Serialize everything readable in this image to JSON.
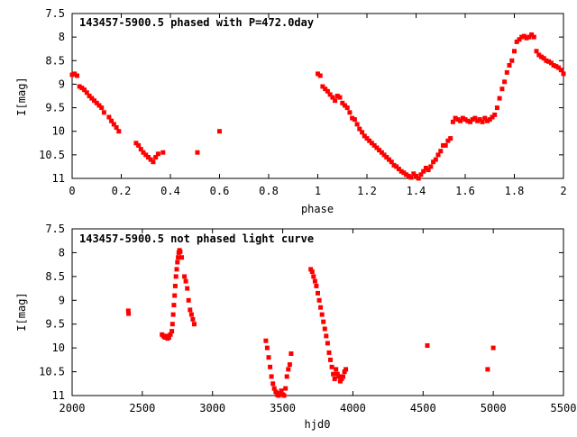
{
  "chart_data": [
    {
      "type": "scatter",
      "title": "143457-5900.5 phased with P=472.0day",
      "xlabel": "phase",
      "ylabel": "I[mag]",
      "xlim": [
        0,
        2
      ],
      "ylim": [
        7.5,
        11
      ],
      "y_inverted": true,
      "x_ticks": [
        "0",
        "0.2",
        "0.4",
        "0.6",
        "0.8",
        "1",
        "1.2",
        "1.4",
        "1.6",
        "1.8",
        "2"
      ],
      "y_ticks": [
        "7.5",
        "8",
        "8.5",
        "9",
        "9.5",
        "10",
        "10.5",
        "11"
      ],
      "grid": false,
      "marker_color": "#ff0000",
      "series": [
        {
          "x": [
            0.0,
            0.01,
            0.02,
            0.03,
            0.04,
            0.05,
            0.06,
            0.07,
            0.08,
            0.09,
            0.1,
            0.11,
            0.12,
            0.13,
            0.15,
            0.16,
            0.17,
            0.18,
            0.19,
            0.26,
            0.27,
            0.28,
            0.29,
            0.3,
            0.31,
            0.32,
            0.33,
            0.34,
            0.35,
            0.37,
            0.51,
            0.6,
            1.0,
            1.01,
            1.02,
            1.03,
            1.04,
            1.05,
            1.06,
            1.07,
            1.08,
            1.09,
            1.1,
            1.11,
            1.12,
            1.13,
            1.14,
            1.15,
            1.16,
            1.17,
            1.18,
            1.19,
            1.2,
            1.21,
            1.22,
            1.23,
            1.24,
            1.25,
            1.26,
            1.27,
            1.28,
            1.29,
            1.3,
            1.31,
            1.32,
            1.33,
            1.34,
            1.35,
            1.36,
            1.37,
            1.38,
            1.39,
            1.4,
            1.41,
            1.42,
            1.43,
            1.44,
            1.45,
            1.46,
            1.47,
            1.48,
            1.49,
            1.5,
            1.51,
            1.52,
            1.53,
            1.54,
            1.55,
            1.56,
            1.57,
            1.58,
            1.59,
            1.6,
            1.61,
            1.62,
            1.63,
            1.64,
            1.65,
            1.66,
            1.67,
            1.68,
            1.69,
            1.7,
            1.71,
            1.72,
            1.73,
            1.74,
            1.75,
            1.76,
            1.77,
            1.78,
            1.79,
            1.8,
            1.81,
            1.82,
            1.83,
            1.84,
            1.85,
            1.86,
            1.87,
            1.88,
            1.89,
            1.9,
            1.91,
            1.92,
            1.93,
            1.94,
            1.95,
            1.96,
            1.97,
            1.98,
            1.99,
            2.0
          ],
          "y": [
            8.8,
            8.78,
            8.82,
            9.05,
            9.08,
            9.12,
            9.18,
            9.25,
            9.3,
            9.35,
            9.4,
            9.45,
            9.5,
            9.6,
            9.7,
            9.78,
            9.85,
            9.92,
            10.0,
            10.25,
            10.3,
            10.38,
            10.45,
            10.5,
            10.55,
            10.6,
            10.65,
            10.55,
            10.48,
            10.45,
            10.45,
            10.0,
            8.78,
            8.82,
            9.05,
            9.1,
            9.15,
            9.22,
            9.28,
            9.35,
            9.25,
            9.28,
            9.4,
            9.45,
            9.5,
            9.6,
            9.72,
            9.75,
            9.85,
            9.95,
            10.02,
            10.1,
            10.15,
            10.2,
            10.25,
            10.3,
            10.35,
            10.4,
            10.45,
            10.5,
            10.55,
            10.6,
            10.65,
            10.72,
            10.75,
            10.8,
            10.85,
            10.88,
            10.92,
            10.95,
            10.98,
            10.9,
            10.95,
            11.0,
            10.92,
            10.85,
            10.78,
            10.82,
            10.75,
            10.65,
            10.6,
            10.5,
            10.42,
            10.3,
            10.3,
            10.2,
            10.15,
            9.8,
            9.72,
            9.75,
            9.78,
            9.72,
            9.75,
            9.78,
            9.8,
            9.75,
            9.72,
            9.78,
            9.75,
            9.8,
            9.72,
            9.78,
            9.75,
            9.7,
            9.65,
            9.5,
            9.3,
            9.1,
            8.95,
            8.75,
            8.6,
            8.5,
            8.3,
            8.1,
            8.05,
            8.0,
            7.98,
            8.02,
            8.0,
            7.95,
            8.0,
            8.3,
            8.38,
            8.42,
            8.45,
            8.5,
            8.52,
            8.55,
            8.6,
            8.62,
            8.65,
            8.7,
            8.78
          ]
        }
      ]
    },
    {
      "type": "scatter",
      "title": "143457-5900.5 not phased light curve",
      "xlabel": "hjd0",
      "ylabel": "I[mag]",
      "xlim": [
        2000,
        5500
      ],
      "ylim": [
        7.5,
        11
      ],
      "y_inverted": true,
      "x_ticks": [
        "2000",
        "2500",
        "3000",
        "3500",
        "4000",
        "4500",
        "5000",
        "5500"
      ],
      "y_ticks": [
        "7.5",
        "8",
        "8.5",
        "9",
        "9.5",
        "10",
        "10.5",
        "11"
      ],
      "grid": false,
      "marker_color": "#ff0000",
      "series": [
        {
          "x": [
            2400,
            2402,
            2640,
            2650,
            2660,
            2670,
            2680,
            2690,
            2700,
            2710,
            2715,
            2720,
            2725,
            2730,
            2735,
            2740,
            2745,
            2750,
            2755,
            2760,
            2765,
            2770,
            2780,
            2800,
            2810,
            2820,
            2830,
            2840,
            2850,
            2860,
            2870,
            3380,
            3390,
            3400,
            3410,
            3420,
            3430,
            3440,
            3450,
            3460,
            3470,
            3480,
            3490,
            3500,
            3510,
            3520,
            3530,
            3540,
            3550,
            3560,
            3700,
            3710,
            3720,
            3730,
            3740,
            3750,
            3760,
            3770,
            3780,
            3790,
            3800,
            3810,
            3820,
            3830,
            3840,
            3850,
            3860,
            3870,
            3880,
            3890,
            3900,
            3910,
            3920,
            3930,
            3940,
            3950,
            4530,
            4960,
            5000
          ],
          "y": [
            9.22,
            9.28,
            9.72,
            9.75,
            9.78,
            9.75,
            9.8,
            9.78,
            9.72,
            9.65,
            9.5,
            9.3,
            9.1,
            8.9,
            8.7,
            8.5,
            8.35,
            8.2,
            8.1,
            8.0,
            7.95,
            7.98,
            8.1,
            8.5,
            8.6,
            8.75,
            9.0,
            9.2,
            9.3,
            9.4,
            9.5,
            9.85,
            10.0,
            10.2,
            10.4,
            10.6,
            10.75,
            10.85,
            10.92,
            10.98,
            11.0,
            10.95,
            10.9,
            10.98,
            11.0,
            10.85,
            10.6,
            10.45,
            10.35,
            10.12,
            8.35,
            8.4,
            8.5,
            8.6,
            8.7,
            8.85,
            9.0,
            9.15,
            9.3,
            9.45,
            9.6,
            9.75,
            9.9,
            10.1,
            10.25,
            10.4,
            10.55,
            10.65,
            10.45,
            10.55,
            10.6,
            10.7,
            10.65,
            10.6,
            10.5,
            10.45,
            9.95,
            10.45,
            10.0
          ]
        }
      ]
    }
  ]
}
